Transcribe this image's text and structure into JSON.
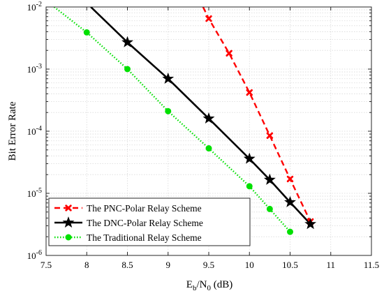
{
  "chart_data": {
    "type": "line",
    "title": "",
    "xlabel": "E_b/N_0 (dB)",
    "xlabel_parts": {
      "base1": "E",
      "sub1": "b",
      "mid": "/N",
      "sub2": "0",
      "unit": " (dB)"
    },
    "ylabel": "Bit Error Rate",
    "xlim": [
      7.5,
      11.5
    ],
    "ylim": [
      1e-06,
      0.01
    ],
    "y_scale": "log",
    "grid": true,
    "legend_position": "bottom-left",
    "x_ticks": [
      7.5,
      8,
      8.5,
      9,
      9.5,
      10,
      10.5,
      11,
      11.5
    ],
    "x_tick_labels": [
      "7.5",
      "8",
      "8.5",
      "9",
      "9.5",
      "10",
      "10.5",
      "11",
      "11.5"
    ],
    "y_ticks": [
      {
        "value": 1e-06,
        "base": "10",
        "exp": "-6"
      },
      {
        "value": 1e-05,
        "base": "10",
        "exp": "-5"
      },
      {
        "value": 0.0001,
        "base": "10",
        "exp": "-4"
      },
      {
        "value": 0.001,
        "base": "10",
        "exp": "-3"
      },
      {
        "value": 0.01,
        "base": "10",
        "exp": "-2"
      }
    ],
    "series": [
      {
        "name": "The PNC-Polar Relay Scheme",
        "color": "#ff0000",
        "line_style": "dashed",
        "marker": "x",
        "x": [
          9.5,
          9.75,
          10,
          10.25,
          10.5,
          10.75
        ],
        "y": [
          0.0065,
          0.0018,
          0.00042,
          8.5e-05,
          1.7e-05,
          3.5e-06
        ],
        "extend_start": {
          "x": 9.43,
          "y": 0.01
        }
      },
      {
        "name": "The DNC-Polar Relay Scheme",
        "color": "#000000",
        "line_style": "solid",
        "marker": "star",
        "x": [
          8.5,
          9,
          9.5,
          10,
          10.25,
          10.5,
          10.75
        ],
        "y": [
          0.0027,
          0.0007,
          0.00016,
          3.6e-05,
          1.65e-05,
          7.2e-06,
          3.2e-06
        ],
        "extend_start": {
          "x": 8.05,
          "y": 0.01
        }
      },
      {
        "name": "The Traditional Relay Scheme",
        "color": "#00e000",
        "line_style": "dotted",
        "marker": "circle",
        "x": [
          8,
          8.5,
          9,
          9.5,
          10,
          10.25,
          10.5
        ],
        "y": [
          0.0039,
          0.001,
          0.00021,
          5.3e-05,
          1.3e-05,
          5.6e-06,
          2.4e-06
        ],
        "extend_start": {
          "x": 7.6,
          "y": 0.01
        }
      }
    ]
  }
}
